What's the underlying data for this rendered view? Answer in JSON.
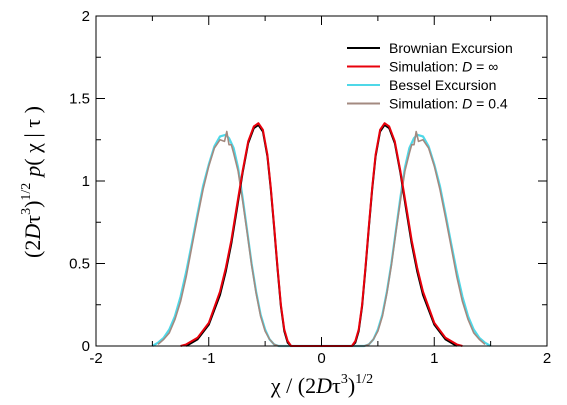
{
  "chart_data": {
    "type": "line",
    "xlim": [
      -2,
      2
    ],
    "ylim": [
      0,
      2
    ],
    "xticks": [
      -2,
      -1,
      0,
      1,
      2
    ],
    "yticks": [
      0,
      0.5,
      1,
      1.5,
      2
    ],
    "xtick_labels": [
      "-2",
      "-1",
      "0",
      "1",
      "2"
    ],
    "ytick_labels": [
      "0",
      "0.5",
      "1",
      "1.5",
      "2"
    ],
    "xlabel": "χ / (2Dτ³)^{1/2}",
    "ylabel": "(2Dτ³)^{1/2} p(χ | τ)",
    "xlabel_parts": {
      "main": "χ / (2",
      "D": "D",
      "tau": "τ",
      "cube": "3",
      "close": ")",
      "half": "1/2"
    },
    "ylabel_parts": {
      "open": "(2",
      "D": "D",
      "tau": "τ",
      "cube": "3",
      "close": ")",
      "half": "1/2",
      "p": "p",
      "paren": "( χ | τ )"
    },
    "grid": false,
    "legend_position": "top-right",
    "legend": [
      "Brownian Excursion",
      "Simulation: D = ∞",
      "Bessel Excursion",
      "Simulation: D = 0.4"
    ],
    "legend_parts": [
      {
        "text": "Brownian Excursion"
      },
      {
        "text": "Simulation: ",
        "italic": "D",
        "rest": " = ∞"
      },
      {
        "text": "Bessel Excursion"
      },
      {
        "text": "Simulation: ",
        "italic": "D",
        "rest": " = 0.4"
      }
    ],
    "series": [
      {
        "name": "Brownian Excursion",
        "color": "#000000",
        "x": [
          -1.2,
          -1.1,
          -1.0,
          -0.9,
          -0.85,
          -0.8,
          -0.75,
          -0.7,
          -0.65,
          -0.6,
          -0.56,
          -0.52,
          -0.48,
          -0.45,
          -0.42,
          -0.39,
          -0.36,
          -0.33,
          -0.3,
          -0.27,
          0.27,
          0.3,
          0.33,
          0.36,
          0.39,
          0.42,
          0.45,
          0.48,
          0.52,
          0.56,
          0.6,
          0.65,
          0.7,
          0.75,
          0.8,
          0.85,
          0.9,
          1.0,
          1.1,
          1.2
        ],
        "y": [
          0.0,
          0.04,
          0.13,
          0.31,
          0.45,
          0.62,
          0.83,
          1.05,
          1.23,
          1.32,
          1.34,
          1.3,
          1.15,
          0.95,
          0.72,
          0.47,
          0.24,
          0.09,
          0.02,
          0.0,
          0.0,
          0.02,
          0.09,
          0.24,
          0.47,
          0.72,
          0.95,
          1.15,
          1.3,
          1.34,
          1.32,
          1.23,
          1.05,
          0.83,
          0.62,
          0.45,
          0.31,
          0.13,
          0.04,
          0.0
        ]
      },
      {
        "name": "Simulation: D = ∞",
        "color": "#e8000b",
        "x": [
          -1.25,
          -1.2,
          -1.1,
          -1.0,
          -0.9,
          -0.85,
          -0.8,
          -0.75,
          -0.7,
          -0.65,
          -0.6,
          -0.56,
          -0.52,
          -0.48,
          -0.45,
          -0.42,
          -0.39,
          -0.36,
          -0.33,
          -0.3,
          -0.27,
          0.27,
          0.3,
          0.33,
          0.36,
          0.39,
          0.42,
          0.45,
          0.48,
          0.52,
          0.56,
          0.6,
          0.65,
          0.7,
          0.75,
          0.8,
          0.85,
          0.9,
          1.0,
          1.1,
          1.2,
          1.25
        ],
        "y": [
          0.0,
          0.01,
          0.05,
          0.14,
          0.33,
          0.47,
          0.64,
          0.85,
          1.06,
          1.24,
          1.33,
          1.35,
          1.31,
          1.16,
          0.96,
          0.73,
          0.48,
          0.25,
          0.1,
          0.03,
          0.0,
          0.0,
          0.03,
          0.1,
          0.25,
          0.48,
          0.73,
          0.96,
          1.16,
          1.31,
          1.35,
          1.33,
          1.24,
          1.06,
          0.85,
          0.64,
          0.47,
          0.33,
          0.14,
          0.05,
          0.01,
          0.0
        ]
      },
      {
        "name": "Bessel Excursion",
        "color": "#4fd8e8",
        "x": [
          -1.5,
          -1.45,
          -1.4,
          -1.35,
          -1.3,
          -1.25,
          -1.2,
          -1.15,
          -1.1,
          -1.05,
          -1.0,
          -0.95,
          -0.9,
          -0.85,
          -0.82,
          -0.78,
          -0.74,
          -0.7,
          -0.66,
          -0.62,
          -0.58,
          -0.54,
          -0.5,
          -0.46,
          -0.42,
          -0.38,
          -0.35,
          0.35,
          0.38,
          0.42,
          0.46,
          0.5,
          0.54,
          0.58,
          0.62,
          0.66,
          0.7,
          0.74,
          0.78,
          0.82,
          0.85,
          0.9,
          0.95,
          1.0,
          1.05,
          1.1,
          1.15,
          1.2,
          1.25,
          1.3,
          1.35,
          1.4,
          1.45,
          1.5
        ],
        "y": [
          0.0,
          0.02,
          0.05,
          0.1,
          0.18,
          0.3,
          0.45,
          0.62,
          0.8,
          0.97,
          1.1,
          1.21,
          1.27,
          1.28,
          1.26,
          1.2,
          1.08,
          0.9,
          0.7,
          0.5,
          0.33,
          0.19,
          0.1,
          0.04,
          0.01,
          0.0,
          0.0,
          0.0,
          0.0,
          0.01,
          0.04,
          0.1,
          0.19,
          0.33,
          0.5,
          0.7,
          0.9,
          1.08,
          1.2,
          1.26,
          1.28,
          1.27,
          1.21,
          1.1,
          0.97,
          0.8,
          0.62,
          0.45,
          0.3,
          0.18,
          0.1,
          0.05,
          0.02,
          0.0
        ]
      },
      {
        "name": "Simulation: D = 0.4",
        "color": "#a38a80",
        "x": [
          -1.45,
          -1.4,
          -1.35,
          -1.3,
          -1.25,
          -1.2,
          -1.15,
          -1.1,
          -1.05,
          -1.0,
          -0.95,
          -0.9,
          -0.86,
          -0.84,
          -0.82,
          -0.8,
          -0.78,
          -0.74,
          -0.7,
          -0.66,
          -0.62,
          -0.58,
          -0.54,
          -0.5,
          -0.46,
          -0.42,
          -0.38,
          -0.35,
          0.35,
          0.38,
          0.42,
          0.46,
          0.5,
          0.54,
          0.58,
          0.62,
          0.66,
          0.7,
          0.74,
          0.78,
          0.8,
          0.82,
          0.84,
          0.86,
          0.9,
          0.95,
          1.0,
          1.05,
          1.1,
          1.15,
          1.2,
          1.25,
          1.3,
          1.35,
          1.4,
          1.45
        ],
        "y": [
          0.01,
          0.04,
          0.08,
          0.16,
          0.27,
          0.42,
          0.6,
          0.78,
          0.95,
          1.09,
          1.2,
          1.25,
          1.24,
          1.3,
          1.22,
          1.22,
          1.17,
          1.06,
          0.88,
          0.69,
          0.49,
          0.32,
          0.18,
          0.09,
          0.04,
          0.01,
          0.0,
          0.0,
          0.0,
          0.0,
          0.01,
          0.04,
          0.09,
          0.18,
          0.32,
          0.49,
          0.69,
          0.88,
          1.06,
          1.17,
          1.22,
          1.22,
          1.3,
          1.24,
          1.25,
          1.2,
          1.09,
          0.95,
          0.78,
          0.6,
          0.42,
          0.27,
          0.16,
          0.08,
          0.04,
          0.01
        ]
      }
    ]
  }
}
